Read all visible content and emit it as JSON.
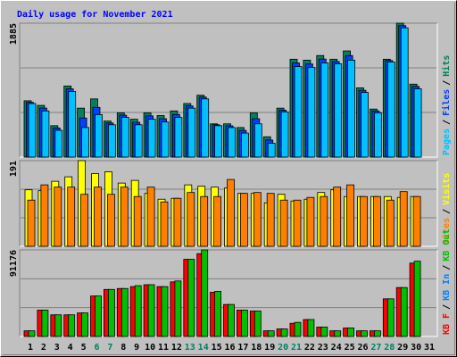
{
  "title": "Daily usage for November 2021",
  "separator": "/",
  "categories": [
    "1",
    "2",
    "3",
    "4",
    "5",
    "6",
    "7",
    "8",
    "9",
    "10",
    "11",
    "12",
    "13",
    "14",
    "15",
    "16",
    "17",
    "18",
    "19",
    "20",
    "21",
    "22",
    "23",
    "24",
    "25",
    "26",
    "27",
    "28",
    "29",
    "30",
    "31"
  ],
  "category_colors": [
    "#000000",
    "#000000",
    "#000000",
    "#000000",
    "#000000",
    "#00805c",
    "#00805c",
    "#000000",
    "#000000",
    "#000000",
    "#000000",
    "#000000",
    "#00805c",
    "#00805c",
    "#000000",
    "#000000",
    "#000000",
    "#000000",
    "#000000",
    "#00805c",
    "#00805c",
    "#000000",
    "#000000",
    "#000000",
    "#000000",
    "#000000",
    "#00805c",
    "#00805c",
    "#000000",
    "#000000",
    "#000000"
  ],
  "chart_data": [
    {
      "type": "bar",
      "ylim": [
        0,
        1885
      ],
      "yticks": [
        1885
      ],
      "grid_divisions": 3,
      "legend_reversed": true,
      "series": [
        {
          "name": "Hits",
          "color": "#00805c",
          "values": [
            793,
            728,
            442,
            1001,
            689,
            819,
            507,
            624,
            533,
            624,
            585,
            650,
            754,
            871,
            468,
            468,
            416,
            624,
            286,
            689,
            1378,
            1365,
            1430,
            1378,
            1495,
            975,
            676,
            1378,
            1885,
            1027,
            null
          ]
        },
        {
          "name": "Files",
          "color": "#0040ff",
          "values": [
            770,
            690,
            410,
            960,
            550,
            700,
            480,
            590,
            490,
            580,
            540,
            600,
            720,
            845,
            455,
            440,
            375,
            540,
            240,
            660,
            1325,
            1310,
            1380,
            1345,
            1430,
            940,
            650,
            1360,
            1850,
            995,
            null
          ]
        },
        {
          "name": "Pages",
          "color": "#00c0ff",
          "values": [
            754,
            650,
            377,
            923,
            416,
            598,
            455,
            559,
            455,
            533,
            494,
            559,
            689,
            819,
            442,
            416,
            338,
            468,
            195,
            637,
            1274,
            1261,
            1326,
            1313,
            1365,
            910,
            624,
            1339,
            1820,
            962,
            null
          ]
        }
      ]
    },
    {
      "type": "bar",
      "ylim": [
        0,
        191
      ],
      "yticks": [
        191
      ],
      "grid_divisions": 3,
      "legend_reversed": true,
      "series": [
        {
          "name": "Visits",
          "color": "#ffff00",
          "values": [
            126,
            124,
            145,
            155,
            191,
            162,
            166,
            141,
            147,
            118,
            105,
            107,
            137,
            134,
            132,
            130,
            118,
            118,
            97,
            116,
            101,
            105,
            120,
            126,
            111,
            111,
            111,
            111,
            109,
            111,
            null
          ]
        },
        {
          "name": "Sites",
          "color": "#ff8000",
          "values": [
            103,
            137,
            132,
            132,
            116,
            132,
            116,
            132,
            111,
            132,
            99,
            107,
            120,
            111,
            111,
            149,
            118,
            120,
            118,
            103,
            103,
            109,
            111,
            132,
            137,
            111,
            111,
            103,
            122,
            111,
            null
          ]
        }
      ]
    },
    {
      "type": "bar",
      "ylim": [
        0,
        91176
      ],
      "yticks": [
        91176
      ],
      "grid_divisions": 3,
      "legend_reversed": false,
      "series": [
        {
          "name": "KB F",
          "color": "#ff0000",
          "values": [
            5946,
            27748,
            22793,
            22793,
            24775,
            42613,
            49550,
            50541,
            52523,
            54505,
            52523,
            57478,
            81262,
            87212,
            46577,
            33694,
            27748,
            26757,
            5946,
            7928,
            13874,
            17838,
            9910,
            5946,
            8919,
            5946,
            5946,
            39640,
            51532,
            77298,
            null
          ]
        },
        {
          "name": "KB In",
          "color": "#0080ff",
          "values": [
            0,
            0,
            0,
            0,
            0,
            0,
            0,
            0,
            0,
            0,
            0,
            0,
            0,
            0,
            0,
            0,
            0,
            0,
            0,
            0,
            0,
            0,
            0,
            0,
            0,
            0,
            0,
            0,
            0,
            0,
            null
          ]
        },
        {
          "name": "KB Out",
          "color": "#00c000",
          "values": [
            5946,
            27748,
            22793,
            22793,
            24775,
            42613,
            49550,
            50541,
            53514,
            54505,
            52523,
            58469,
            81262,
            91176,
            47568,
            33694,
            27748,
            26757,
            5946,
            7928,
            14865,
            17838,
            9910,
            5946,
            8919,
            5946,
            5946,
            39640,
            51532,
            79280,
            null
          ]
        }
      ]
    }
  ]
}
